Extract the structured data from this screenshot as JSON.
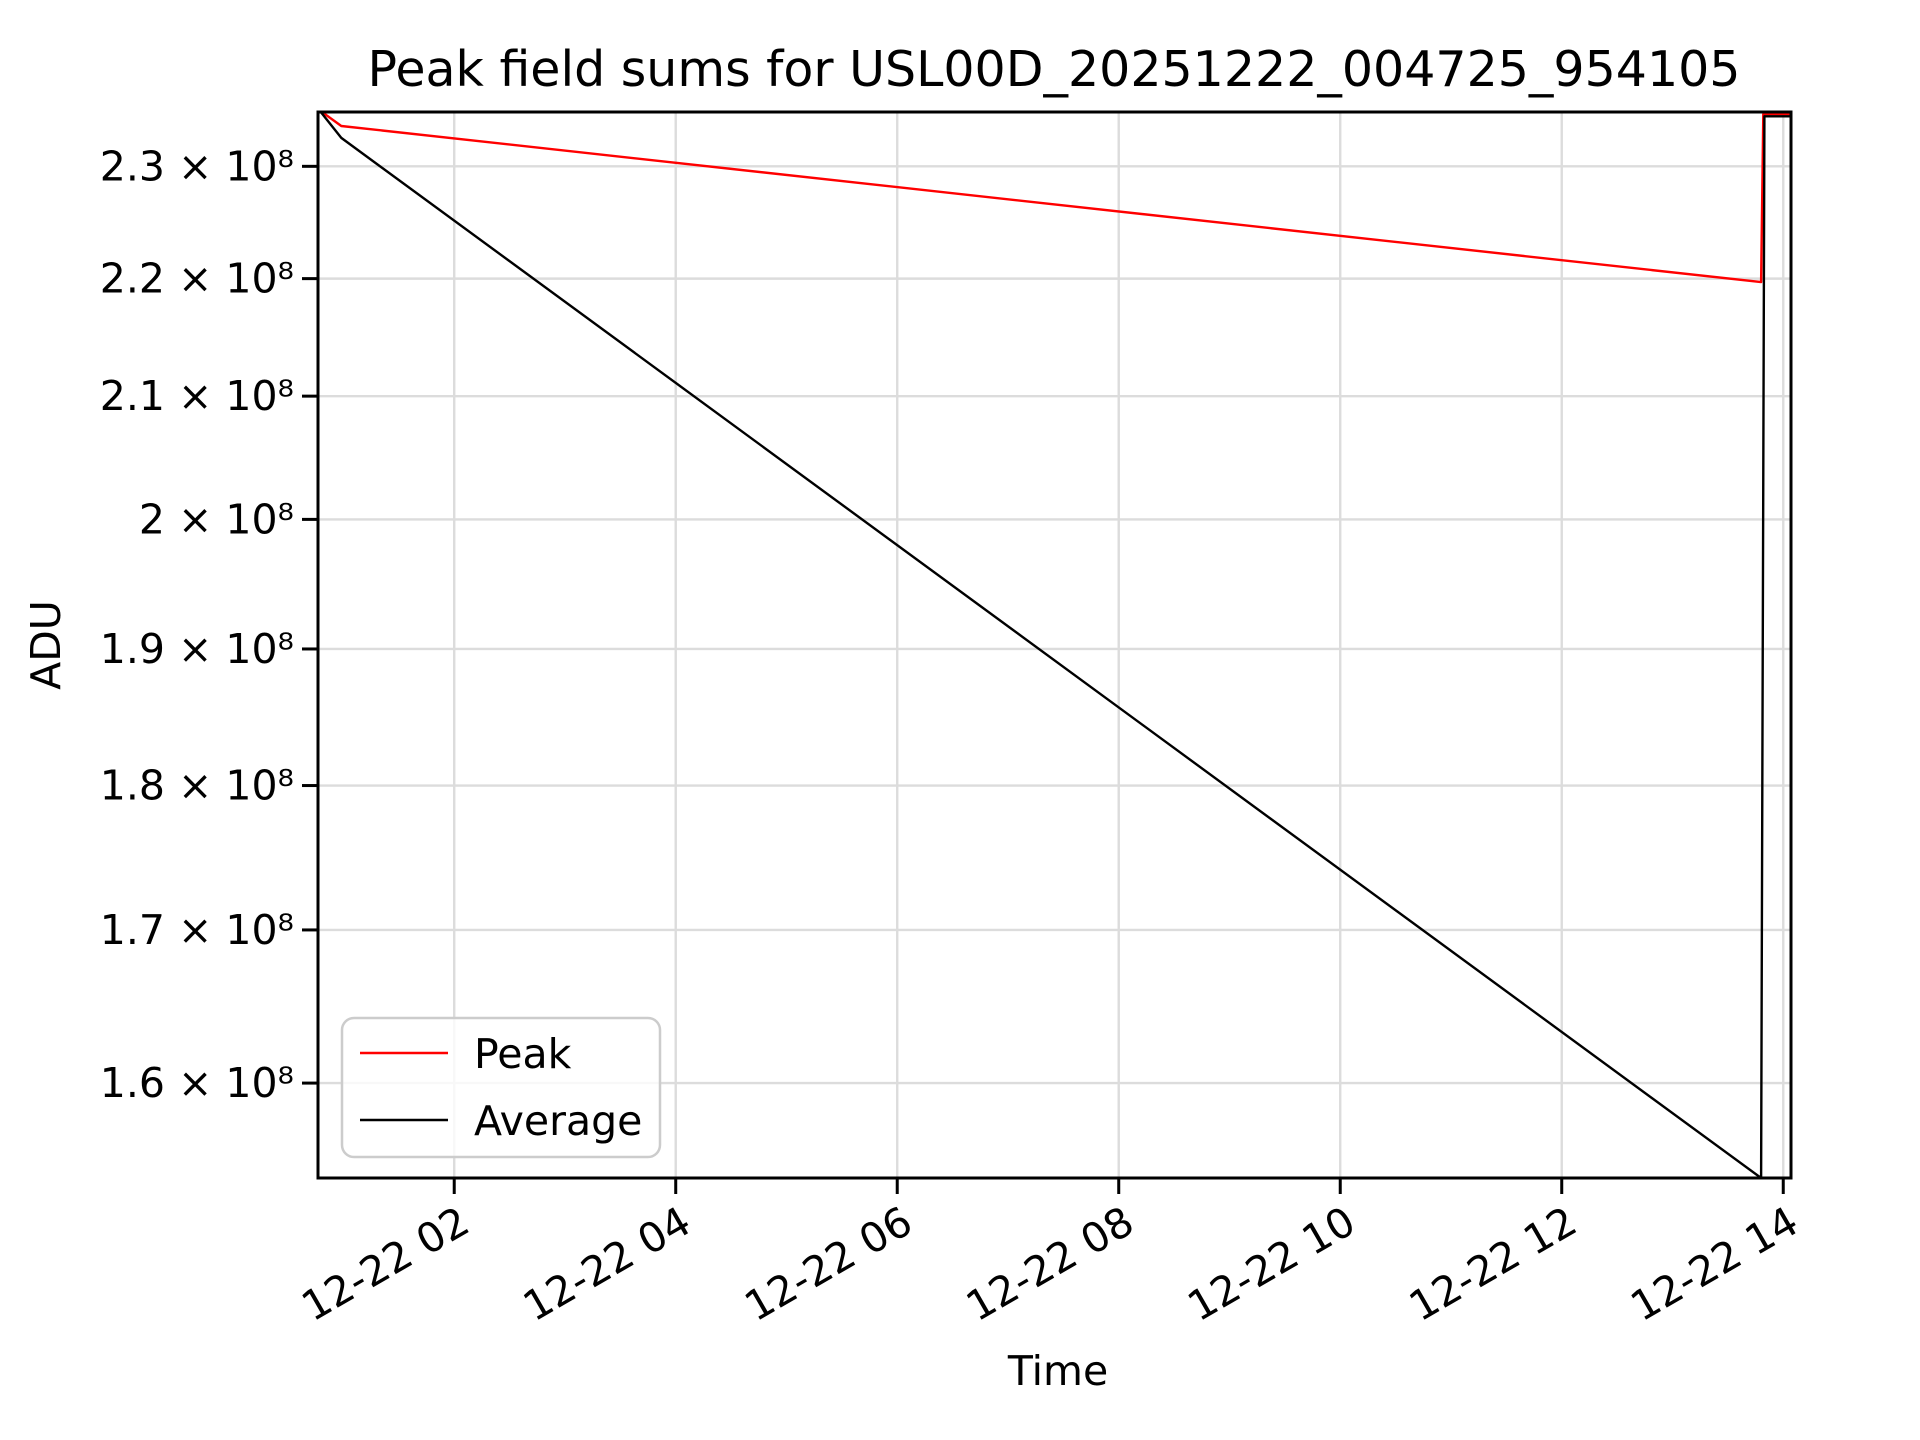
{
  "page": {
    "background": "#ffffff"
  },
  "chart_data": {
    "type": "line",
    "title": "Peak field sums for USL00D_20251222_004725_954105",
    "xlabel": "Time",
    "ylabel": "ADU",
    "yscale": "log",
    "grid": true,
    "grid_color": "#dcdcdc",
    "frame_color": "#000000",
    "legend": {
      "position": "lower left",
      "entries": [
        "Peak",
        "Average"
      ],
      "border_color": "#cccccc",
      "background": "#ffffff"
    },
    "x_axis": {
      "unit": "hours on 12-22",
      "xlim_hours": [
        0.77,
        14.07
      ],
      "ticks": [
        {
          "hour": 2,
          "label": "12-22 02"
        },
        {
          "hour": 4,
          "label": "12-22 04"
        },
        {
          "hour": 6,
          "label": "12-22 06"
        },
        {
          "hour": 8,
          "label": "12-22 08"
        },
        {
          "hour": 10,
          "label": "12-22 10"
        },
        {
          "hour": 12,
          "label": "12-22 12"
        },
        {
          "hour": 14,
          "label": "12-22 14"
        }
      ],
      "tick_rotation_deg": -30
    },
    "y_axis": {
      "ylim": [
        154100000,
        235000000
      ],
      "ticks": [
        {
          "value": 230000000,
          "label": "2.3 × 10⁸"
        },
        {
          "value": 220000000,
          "label": "2.2 × 10⁸"
        },
        {
          "value": 210000000,
          "label": "2.1 × 10⁸"
        },
        {
          "value": 200000000,
          "label": "2 × 10⁸"
        },
        {
          "value": 190000000,
          "label": "1.9 × 10⁸"
        },
        {
          "value": 180000000,
          "label": "1.8 × 10⁸"
        },
        {
          "value": 170000000,
          "label": "1.7 × 10⁸"
        },
        {
          "value": 160000000,
          "label": "1.6 × 10⁸"
        }
      ]
    },
    "series": [
      {
        "name": "Peak",
        "color": "#ff0000",
        "points_hour_value": [
          [
            0.78,
            235200000
          ],
          [
            0.98,
            233700000
          ],
          [
            13.8,
            219700000
          ],
          [
            13.82,
            234800000
          ],
          [
            14.07,
            234800000
          ]
        ]
      },
      {
        "name": "Average",
        "color": "#000000",
        "points_hour_value": [
          [
            0.78,
            235200000
          ],
          [
            0.98,
            232600000
          ],
          [
            13.8,
            154100000
          ],
          [
            13.83,
            234600000
          ],
          [
            14.07,
            234600000
          ]
        ]
      }
    ]
  }
}
